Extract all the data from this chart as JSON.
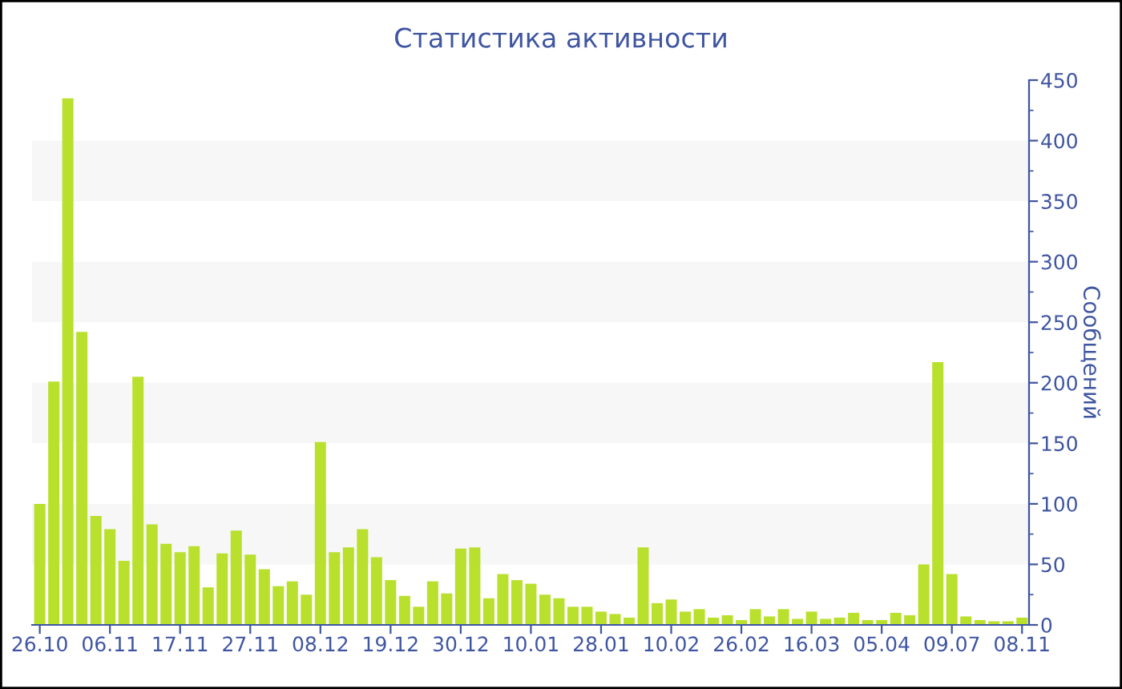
{
  "chart_data": {
    "type": "bar",
    "title": "Статистика активности",
    "ylabel": "Сообщений",
    "categories": [
      "26.10",
      null,
      null,
      null,
      null,
      "06.11",
      null,
      null,
      null,
      null,
      "17.11",
      null,
      null,
      null,
      null,
      "27.11",
      null,
      null,
      null,
      null,
      "08.12",
      null,
      null,
      null,
      null,
      "19.12",
      null,
      null,
      null,
      null,
      "30.12",
      null,
      null,
      null,
      null,
      "10.01",
      null,
      null,
      null,
      null,
      "28.01",
      null,
      null,
      null,
      null,
      "10.02",
      null,
      null,
      null,
      null,
      "26.02",
      null,
      null,
      null,
      null,
      "16.03",
      null,
      null,
      null,
      null,
      "05.04",
      null,
      null,
      null,
      null,
      "09.07",
      null,
      null,
      null,
      null,
      "08.11"
    ],
    "values": [
      100,
      201,
      435,
      242,
      90,
      79,
      53,
      205,
      83,
      67,
      60,
      65,
      31,
      59,
      78,
      58,
      46,
      32,
      36,
      25,
      151,
      60,
      64,
      79,
      56,
      37,
      24,
      15,
      36,
      26,
      63,
      64,
      22,
      42,
      37,
      34,
      25,
      22,
      15,
      15,
      11,
      9,
      6,
      64,
      18,
      21,
      11,
      13,
      6,
      8,
      4,
      13,
      7,
      13,
      5,
      11,
      5,
      6,
      10,
      4,
      4,
      10,
      8,
      50,
      217,
      42,
      7,
      4,
      3,
      3,
      6
    ],
    "color": "#b8e02c",
    "ylim": [
      0,
      450
    ],
    "yticks": [
      0,
      50,
      100,
      150,
      200,
      250,
      300,
      350,
      400,
      450
    ],
    "bands": [
      {
        "axis": "y",
        "from": 50,
        "to": 100,
        "color": "#f7f7f7"
      },
      {
        "axis": "y",
        "from": 150,
        "to": 200,
        "color": "#f7f7f7"
      },
      {
        "axis": "y",
        "from": 250,
        "to": 300,
        "color": "#f7f7f7"
      },
      {
        "axis": "y",
        "from": 350,
        "to": 400,
        "color": "#f7f7f7"
      }
    ],
    "grid": false,
    "legend": false
  }
}
